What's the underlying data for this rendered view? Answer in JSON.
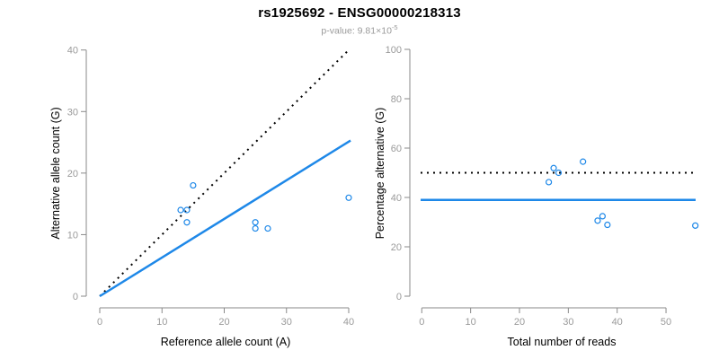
{
  "header": {
    "title": "rs1925692 - ENSG00000218313",
    "pvalue_prefix": "p-value: 9.81×10",
    "pvalue_exponent": "-5"
  },
  "colors": {
    "accent_blue": "#1e88e8",
    "line_black": "#000000",
    "axis_gray": "#8a8a8a",
    "tick_label_gray": "#9a9a9a",
    "text_black": "#000000"
  },
  "chart_data": [
    {
      "type": "scatter",
      "panel": "left",
      "title": "",
      "xlabel": "Reference allele count (A)",
      "ylabel": "Alternative allele count (G)",
      "xlim": [
        0,
        40
      ],
      "ylim": [
        0,
        40
      ],
      "xticks": [
        0,
        10,
        20,
        30,
        40
      ],
      "yticks": [
        0,
        10,
        20,
        30,
        40
      ],
      "grid": false,
      "points": [
        {
          "x": 13,
          "y": 14
        },
        {
          "x": 14,
          "y": 14
        },
        {
          "x": 14,
          "y": 12
        },
        {
          "x": 15,
          "y": 18
        },
        {
          "x": 25,
          "y": 12
        },
        {
          "x": 25,
          "y": 11
        },
        {
          "x": 27,
          "y": 11
        },
        {
          "x": 40,
          "y": 16
        }
      ],
      "lines": [
        {
          "name": "identity",
          "style": "dotted",
          "color": "#000000",
          "x1": 0,
          "y1": 0,
          "x2": 40,
          "y2": 40
        },
        {
          "name": "fit",
          "style": "solid",
          "color": "#1e88e8",
          "x1": 0,
          "y1": 0,
          "x2": 40.3,
          "y2": 25.3
        }
      ]
    },
    {
      "type": "scatter",
      "panel": "right",
      "title": "",
      "xlabel": "Total number of reads",
      "ylabel": "Percentage alternative (G)",
      "xlim": [
        0,
        56
      ],
      "ylim": [
        0,
        100
      ],
      "xticks": [
        0,
        10,
        20,
        30,
        40,
        50
      ],
      "yticks": [
        0,
        20,
        40,
        60,
        80,
        100
      ],
      "grid": false,
      "points": [
        {
          "x": 26,
          "y": 46.2
        },
        {
          "x": 27,
          "y": 51.9
        },
        {
          "x": 28,
          "y": 50.0
        },
        {
          "x": 33,
          "y": 54.5
        },
        {
          "x": 36,
          "y": 30.6
        },
        {
          "x": 37,
          "y": 32.4
        },
        {
          "x": 38,
          "y": 28.9
        },
        {
          "x": 56,
          "y": 28.6
        }
      ],
      "lines": [
        {
          "name": "expected-50pct",
          "style": "dotted",
          "color": "#000000",
          "y": 50
        },
        {
          "name": "mean-percentage",
          "style": "solid",
          "color": "#1e88e8",
          "y": 39
        }
      ]
    }
  ]
}
